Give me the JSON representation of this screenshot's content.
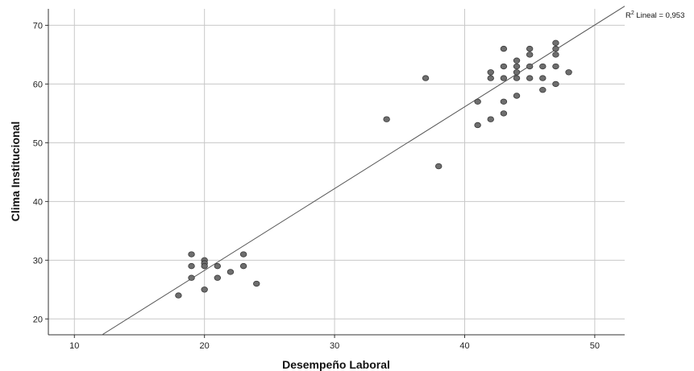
{
  "chart_data": {
    "type": "scatter",
    "xlabel": "Desempeño Laboral",
    "ylabel": "Clima Institucional",
    "xlim": [
      8,
      52.3
    ],
    "ylim": [
      17.3,
      72.8
    ],
    "xticks": [
      10,
      20,
      30,
      40,
      50
    ],
    "yticks": [
      20,
      30,
      40,
      50,
      60,
      70
    ],
    "grid": true,
    "fit_line": {
      "slope": 1.393,
      "intercept": 0.4,
      "label_prefix": "R",
      "label_sup": "2",
      "label_rest": " Lineal = 0,953"
    },
    "points": [
      {
        "x": 18,
        "y": 24
      },
      {
        "x": 19,
        "y": 31
      },
      {
        "x": 19,
        "y": 29
      },
      {
        "x": 19,
        "y": 27
      },
      {
        "x": 20,
        "y": 30
      },
      {
        "x": 20,
        "y": 29.5
      },
      {
        "x": 20,
        "y": 29
      },
      {
        "x": 20,
        "y": 25
      },
      {
        "x": 21,
        "y": 29
      },
      {
        "x": 21,
        "y": 27
      },
      {
        "x": 22,
        "y": 28
      },
      {
        "x": 23,
        "y": 31
      },
      {
        "x": 23,
        "y": 29
      },
      {
        "x": 24,
        "y": 26
      },
      {
        "x": 34,
        "y": 54
      },
      {
        "x": 37,
        "y": 61
      },
      {
        "x": 38,
        "y": 46
      },
      {
        "x": 41,
        "y": 57
      },
      {
        "x": 41,
        "y": 53
      },
      {
        "x": 42,
        "y": 62
      },
      {
        "x": 42,
        "y": 61
      },
      {
        "x": 42,
        "y": 54
      },
      {
        "x": 43,
        "y": 66
      },
      {
        "x": 43,
        "y": 63
      },
      {
        "x": 43,
        "y": 61
      },
      {
        "x": 43,
        "y": 57
      },
      {
        "x": 43,
        "y": 55
      },
      {
        "x": 44,
        "y": 64
      },
      {
        "x": 44,
        "y": 63
      },
      {
        "x": 44,
        "y": 62
      },
      {
        "x": 44,
        "y": 61
      },
      {
        "x": 44,
        "y": 58
      },
      {
        "x": 45,
        "y": 66
      },
      {
        "x": 45,
        "y": 65
      },
      {
        "x": 45,
        "y": 63
      },
      {
        "x": 45,
        "y": 61
      },
      {
        "x": 46,
        "y": 63
      },
      {
        "x": 46,
        "y": 61
      },
      {
        "x": 46,
        "y": 59
      },
      {
        "x": 47,
        "y": 67
      },
      {
        "x": 47,
        "y": 66
      },
      {
        "x": 47,
        "y": 65
      },
      {
        "x": 47,
        "y": 63
      },
      {
        "x": 47,
        "y": 60
      },
      {
        "x": 48,
        "y": 62
      }
    ]
  }
}
